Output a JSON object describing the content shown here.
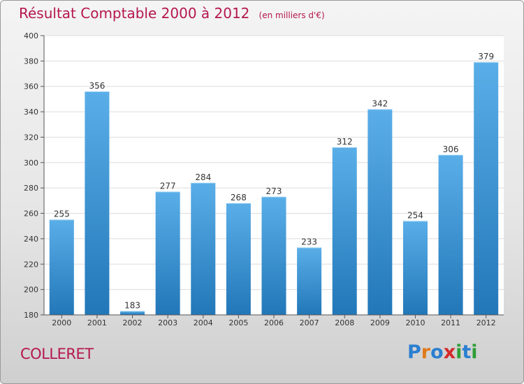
{
  "chart_data": {
    "type": "bar",
    "title": "Résultat Comptable 2000 à 2012",
    "subtitle": "(en milliers d'€)",
    "categories": [
      "2000",
      "2001",
      "2002",
      "2003",
      "2004",
      "2005",
      "2006",
      "2007",
      "2008",
      "2009",
      "2010",
      "2011",
      "2012"
    ],
    "values": [
      255,
      356,
      183,
      277,
      284,
      268,
      273,
      233,
      312,
      342,
      254,
      306,
      379
    ],
    "ylim": [
      180,
      400
    ],
    "yticks": [
      180,
      200,
      220,
      240,
      260,
      280,
      300,
      320,
      340,
      360,
      380,
      400
    ],
    "xlabel": "",
    "ylabel": "",
    "grid": true
  },
  "footer": {
    "location": "COLLERET",
    "brand_letters": [
      "P",
      "r",
      "o",
      "x",
      "i",
      "t",
      "i"
    ]
  },
  "colors": {
    "title": "#b5174f",
    "bar_top": "#5aaee8",
    "bar_bottom": "#2277b8",
    "brand": [
      "#2b7fd0",
      "#e07a1a",
      "#2b7fd0",
      "#d42a2a",
      "#2f9e36",
      "#2b7fd0",
      "#2f9e36"
    ]
  }
}
